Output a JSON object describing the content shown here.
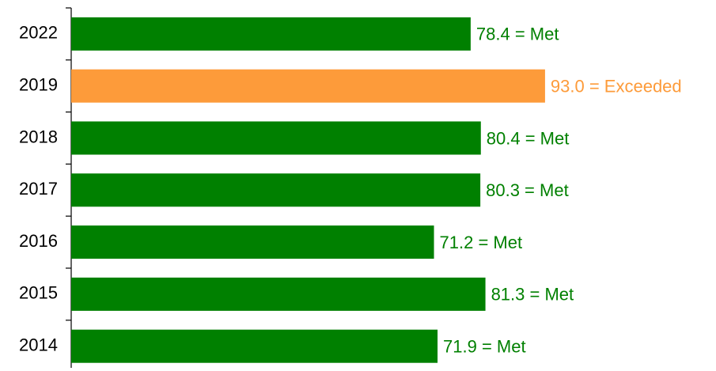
{
  "chart_data": {
    "type": "bar",
    "orientation": "horizontal",
    "categories": [
      "2022",
      "2019",
      "2018",
      "2017",
      "2016",
      "2015",
      "2014"
    ],
    "values": [
      78.4,
      93.0,
      80.4,
      80.3,
      71.2,
      81.3,
      71.9
    ],
    "value_labels": [
      "78.4 = Met",
      "93.0 = Exceeded",
      "80.4 = Met",
      "80.3 = Met",
      "71.2 = Met",
      "81.3 = Met",
      "71.9 = Met"
    ],
    "colors": [
      "#008000",
      "#fd9b3a",
      "#008000",
      "#008000",
      "#008000",
      "#008000",
      "#008000"
    ]
  }
}
